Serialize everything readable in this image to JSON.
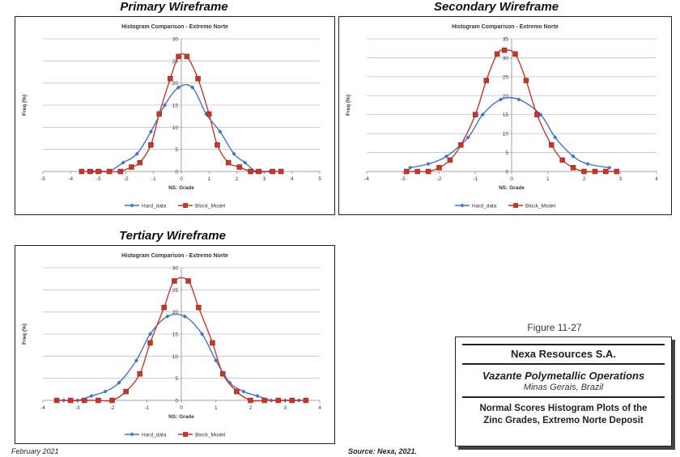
{
  "panels": {
    "primary": "Primary Wireframe",
    "secondary": "Secondary Wireframe",
    "tertiary": "Tertiary Wireframe"
  },
  "colors": {
    "hard": "#4472C4",
    "block": "#C0392B",
    "grid": "#BFBFBF"
  },
  "chart_data": [
    {
      "type": "line",
      "title": "Histogram Comparison - Extremo Norte",
      "xlabel": "NS: Grade",
      "ylabel": "Freq (%)",
      "xlim": [
        -5,
        5
      ],
      "ylim": [
        0,
        30
      ],
      "xticks": [
        -5,
        -4,
        -3,
        -2,
        -1,
        0,
        1,
        2,
        3,
        4,
        5
      ],
      "yticks": [
        0,
        5,
        10,
        15,
        20,
        25,
        30
      ],
      "series": [
        {
          "name": "Hard_data",
          "marker": "diamond",
          "x": [
            -3.2,
            -2.9,
            -2.6,
            -2.1,
            -1.6,
            -1.1,
            -0.6,
            -0.1,
            0.4,
            0.9,
            1.4,
            1.9,
            2.3,
            2.7,
            3.2
          ],
          "y": [
            0,
            0,
            0,
            2,
            4,
            9,
            15,
            19,
            19,
            13,
            9,
            4,
            2,
            0,
            0
          ]
        },
        {
          "name": "Block_Model",
          "marker": "square",
          "x": [
            -3.6,
            -3.3,
            -3.0,
            -2.6,
            -2.2,
            -1.8,
            -1.5,
            -1.1,
            -0.8,
            -0.4,
            -0.1,
            0.2,
            0.6,
            1.0,
            1.3,
            1.7,
            2.1,
            2.5,
            2.8,
            3.3,
            3.6
          ],
          "y": [
            0,
            0,
            0,
            0,
            0,
            1,
            2,
            6,
            13,
            21,
            26,
            26,
            21,
            13,
            6,
            2,
            1,
            0,
            0,
            0,
            0
          ]
        }
      ]
    },
    {
      "type": "line",
      "title": "Histogram Comparison - Extremo Norte",
      "xlabel": "NS: Grade",
      "ylabel": "Freq (%)",
      "xlim": [
        -4,
        4
      ],
      "ylim": [
        0,
        35
      ],
      "xticks": [
        -4,
        -3,
        -2,
        -1,
        0,
        1,
        2,
        3,
        4
      ],
      "yticks": [
        0,
        5,
        10,
        15,
        20,
        25,
        30,
        35
      ],
      "series": [
        {
          "name": "Hard_data",
          "marker": "diamond",
          "x": [
            -2.8,
            -2.3,
            -1.8,
            -1.2,
            -0.8,
            -0.3,
            0.2,
            0.8,
            1.2,
            1.7,
            2.1,
            2.7
          ],
          "y": [
            1,
            2,
            4,
            9,
            15,
            19,
            19,
            15,
            9,
            4,
            2,
            1
          ]
        },
        {
          "name": "Block_Model",
          "marker": "square",
          "x": [
            -2.9,
            -2.6,
            -2.3,
            -2.0,
            -1.7,
            -1.4,
            -1.0,
            -0.7,
            -0.4,
            -0.2,
            0.1,
            0.4,
            0.7,
            1.1,
            1.4,
            1.7,
            2.0,
            2.3,
            2.6,
            2.9
          ],
          "y": [
            0,
            0,
            0,
            1,
            3,
            7,
            15,
            24,
            31,
            32,
            31,
            24,
            15,
            7,
            3,
            1,
            0,
            0,
            0,
            0
          ]
        }
      ]
    },
    {
      "type": "line",
      "title": "Histogram Comparison - Extremo Norte",
      "xlabel": "NS: Grade",
      "ylabel": "Freq (%)",
      "xlim": [
        -4,
        4
      ],
      "ylim": [
        0,
        30
      ],
      "xticks": [
        -4,
        -3,
        -2,
        -1,
        0,
        1,
        2,
        3,
        4
      ],
      "yticks": [
        0,
        5,
        10,
        15,
        20,
        25,
        30
      ],
      "series": [
        {
          "name": "Hard_data",
          "marker": "diamond",
          "x": [
            -3.4,
            -3.0,
            -2.6,
            -2.2,
            -1.8,
            -1.3,
            -0.9,
            -0.4,
            0.1,
            0.6,
            1.0,
            1.4,
            1.8,
            2.2,
            2.6,
            3.0,
            3.4
          ],
          "y": [
            0,
            0,
            1,
            2,
            4,
            9,
            15,
            19,
            19,
            15,
            9,
            4,
            2,
            1,
            0,
            0,
            0
          ]
        },
        {
          "name": "Block_Model",
          "marker": "square",
          "x": [
            -3.6,
            -3.2,
            -2.8,
            -2.4,
            -2.0,
            -1.6,
            -1.2,
            -0.9,
            -0.5,
            -0.2,
            0.2,
            0.5,
            0.9,
            1.2,
            1.6,
            2.0,
            2.4,
            2.8,
            3.2,
            3.6
          ],
          "y": [
            0,
            0,
            0,
            0,
            0,
            2,
            6,
            13,
            21,
            27,
            27,
            21,
            13,
            6,
            2,
            0,
            0,
            0,
            0,
            0
          ]
        }
      ]
    }
  ],
  "title_block": {
    "figure_label": "Figure 11-27",
    "company": "Nexa Resources S.A.",
    "project": "Vazante Polymetallic Operations",
    "location": "Minas Gerais, Brazil",
    "description_line1": "Normal Scores Histogram Plots of the",
    "description_line2": "Zinc Grades, Extremo Norte Deposit"
  },
  "footer": {
    "date": "February 2021",
    "source": "Source: Nexa, 2021."
  }
}
